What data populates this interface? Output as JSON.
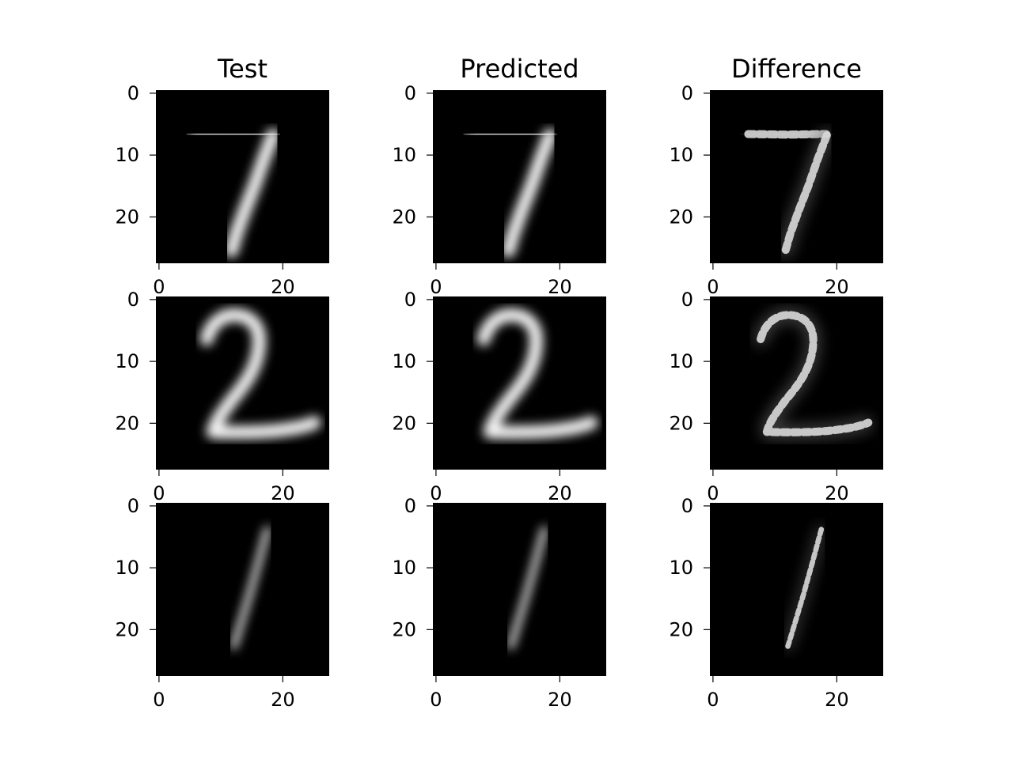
{
  "chart_data": {
    "type": "image-grid",
    "columns": [
      "Test",
      "Predicted",
      "Difference"
    ],
    "rows": [
      {
        "digit": "7"
      },
      {
        "digit": "2"
      },
      {
        "digit": "1"
      }
    ],
    "image_shape": [
      28,
      28
    ],
    "colormap": "gray",
    "x_ticks": [
      0,
      20
    ],
    "y_ticks": [
      0,
      10,
      20
    ]
  }
}
